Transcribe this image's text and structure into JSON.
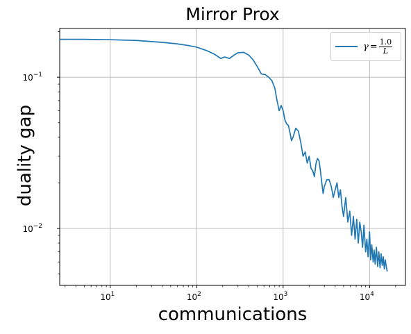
{
  "chart_data": {
    "type": "line",
    "title": "Mirror Prox",
    "xlabel": "communications",
    "ylabel": "duality gap",
    "xscale": "log",
    "yscale": "log",
    "xlim": [
      2.6,
      26000
    ],
    "ylim": [
      0.0042,
      0.21
    ],
    "grid": true,
    "legend_position": "top-right",
    "x_ticks": [
      {
        "base": "10",
        "exp": "1",
        "value": 10
      },
      {
        "base": "10",
        "exp": "2",
        "value": 100
      },
      {
        "base": "10",
        "exp": "3",
        "value": 1000
      },
      {
        "base": "10",
        "exp": "4",
        "value": 10000
      }
    ],
    "y_ticks": [
      {
        "base": "10",
        "exp": "−2",
        "value": 0.01
      },
      {
        "base": "10",
        "exp": "−1",
        "value": 0.1
      }
    ],
    "series": [
      {
        "legend_prefix": "γ",
        "legend_eq": "=",
        "legend_num": "1.0",
        "legend_den": "L",
        "color": "#1f77b4",
        "x": [
          2.6,
          5,
          10,
          20,
          40,
          60,
          80,
          100,
          130,
          160,
          190,
          210,
          240,
          270,
          300,
          350,
          400,
          450,
          500,
          560,
          620,
          680,
          740,
          800,
          850,
          900,
          950,
          1000,
          1050,
          1100,
          1150,
          1200,
          1250,
          1300,
          1400,
          1500,
          1600,
          1700,
          1800,
          1900,
          2000,
          2100,
          2200,
          2300,
          2400,
          2500,
          2600,
          2700,
          2800,
          2900,
          3000,
          3200,
          3400,
          3600,
          3800,
          4000,
          4200,
          4400,
          4600,
          4800,
          5000,
          5300,
          5600,
          5900,
          6200,
          6500,
          6800,
          7100,
          7400,
          7700,
          8000,
          8300,
          8600,
          9000,
          9300,
          9600,
          10000,
          10300,
          10600,
          11000,
          11300,
          11600,
          12000,
          12400,
          12800,
          13200,
          13600,
          14000,
          14400,
          14800,
          15200,
          15600,
          16000
        ],
        "y": [
          0.178,
          0.178,
          0.177,
          0.175,
          0.17,
          0.166,
          0.162,
          0.158,
          0.15,
          0.142,
          0.133,
          0.136,
          0.133,
          0.14,
          0.145,
          0.146,
          0.14,
          0.13,
          0.118,
          0.105,
          0.104,
          0.1,
          0.095,
          0.085,
          0.07,
          0.06,
          0.065,
          0.06,
          0.052,
          0.049,
          0.048,
          0.043,
          0.038,
          0.04,
          0.046,
          0.044,
          0.037,
          0.03,
          0.032,
          0.027,
          0.03,
          0.025,
          0.024,
          0.022,
          0.027,
          0.029,
          0.028,
          0.024,
          0.02,
          0.017,
          0.019,
          0.021,
          0.021,
          0.019,
          0.016,
          0.018,
          0.02,
          0.016,
          0.018,
          0.014,
          0.012,
          0.016,
          0.011,
          0.013,
          0.009,
          0.012,
          0.0085,
          0.0115,
          0.008,
          0.011,
          0.0095,
          0.0075,
          0.0105,
          0.007,
          0.0085,
          0.0065,
          0.0095,
          0.0062,
          0.0078,
          0.006,
          0.0072,
          0.0058,
          0.0075,
          0.0056,
          0.007,
          0.0055,
          0.0068,
          0.0057,
          0.0065,
          0.0054,
          0.0062,
          0.0056,
          0.0052
        ]
      }
    ]
  }
}
